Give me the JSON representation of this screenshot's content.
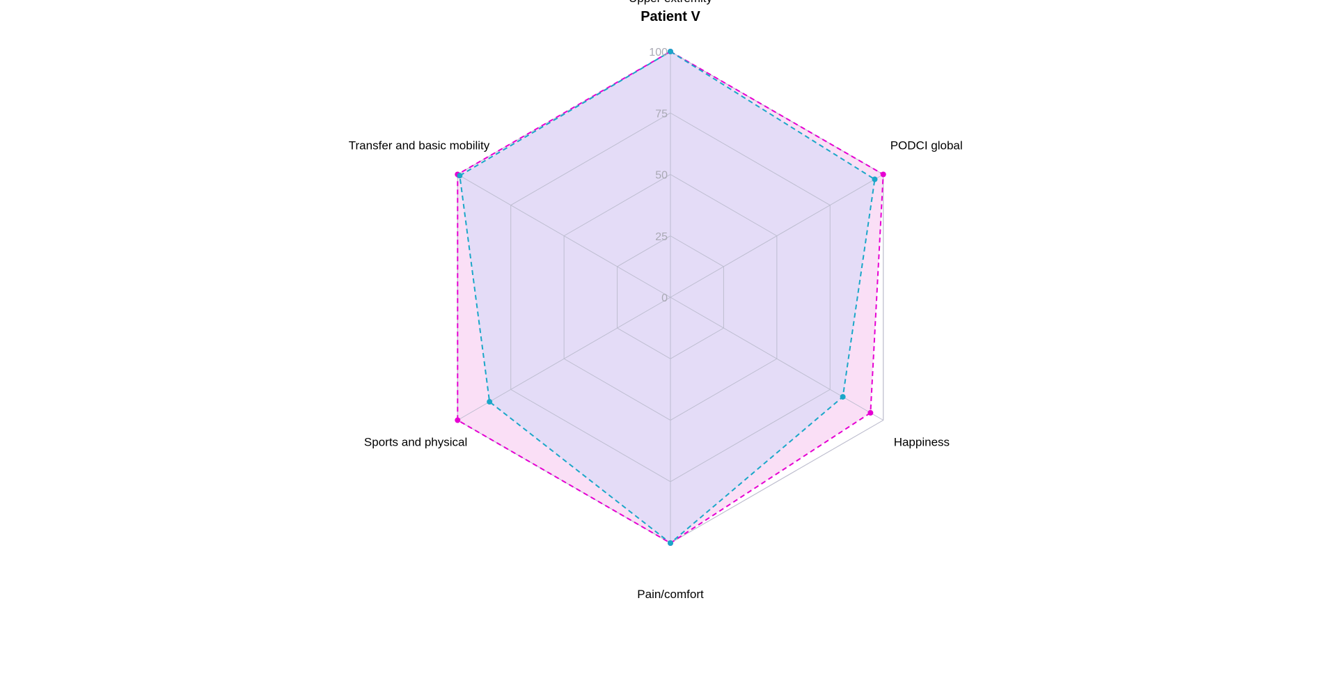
{
  "chart_data": {
    "type": "radar",
    "title": "Patient V",
    "axes": [
      "Upper extremity",
      "PODCI global",
      "Happiness",
      "Pain/comfort",
      "Sports and physical",
      "Transfer and basic mobility"
    ],
    "ticks": [
      "0",
      "25",
      "50",
      "75",
      "100"
    ],
    "range": [
      0,
      100
    ],
    "grid": true,
    "legend": "none",
    "series": [
      {
        "values": [
          100,
          100,
          94,
          100,
          100,
          100
        ],
        "color": "#e600d2",
        "fill": "#f9d9f5",
        "line_style": "dashed"
      },
      {
        "values": [
          100,
          96,
          81,
          100,
          85,
          99
        ],
        "color": "#1aa7c8",
        "fill": "#dfdcf7",
        "line_style": "dashed"
      }
    ],
    "colors": {
      "grid": "#bdbdd0",
      "outer_frame": "#c8c8c8",
      "tick_label": "#a9a9b4"
    }
  }
}
